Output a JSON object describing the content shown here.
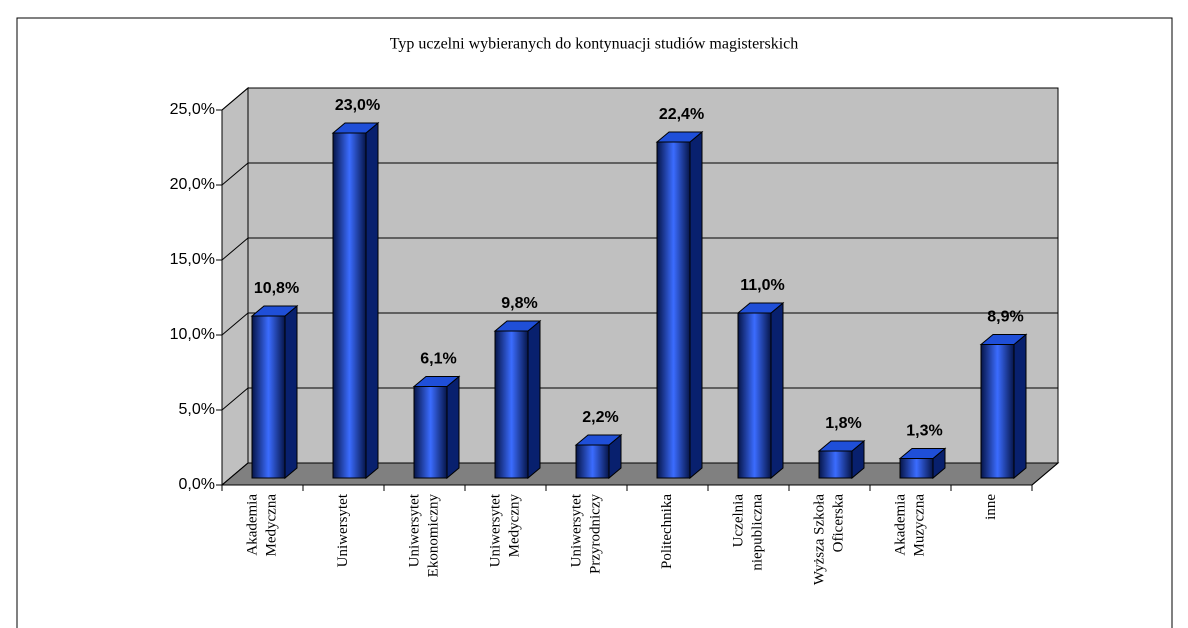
{
  "chart_data": {
    "type": "bar3d",
    "title": "Typ uczelni wybieranych do kontynuacji studiów magisterskich",
    "categories": [
      [
        "Akademia",
        "Medyczna"
      ],
      [
        "Uniwersytet"
      ],
      [
        "Uniwersytet",
        "Ekonomiczny"
      ],
      [
        "Uniwersytet",
        "Medyczny"
      ],
      [
        "Uniwersytet",
        "Przyrodniczy"
      ],
      [
        "Politechnika"
      ],
      [
        "Uczelnia",
        "niepubliczna"
      ],
      [
        "Wyższa Szkoła",
        "Oficerska"
      ],
      [
        "Akademia",
        "Muzyczna"
      ],
      [
        "inne"
      ]
    ],
    "values": [
      10.8,
      23.0,
      6.1,
      9.8,
      2.2,
      22.4,
      11.0,
      1.8,
      1.3,
      8.9
    ],
    "value_labels": [
      "10,8%",
      "23,0%",
      "6,1%",
      "9,8%",
      "2,2%",
      "22,4%",
      "11,0%",
      "1,8%",
      "1,3%",
      "8,9%"
    ],
    "color": "#1f4fd8",
    "ylim": [
      0,
      25
    ],
    "yticks": [
      {
        "value": 0,
        "label": "0,0%"
      },
      {
        "value": 5,
        "label": "5,0%"
      },
      {
        "value": 10,
        "label": "10,0%"
      },
      {
        "value": 15,
        "label": "15,0%"
      },
      {
        "value": 20,
        "label": "20,0%"
      },
      {
        "value": 25,
        "label": "25,0%"
      }
    ],
    "grid": true
  }
}
